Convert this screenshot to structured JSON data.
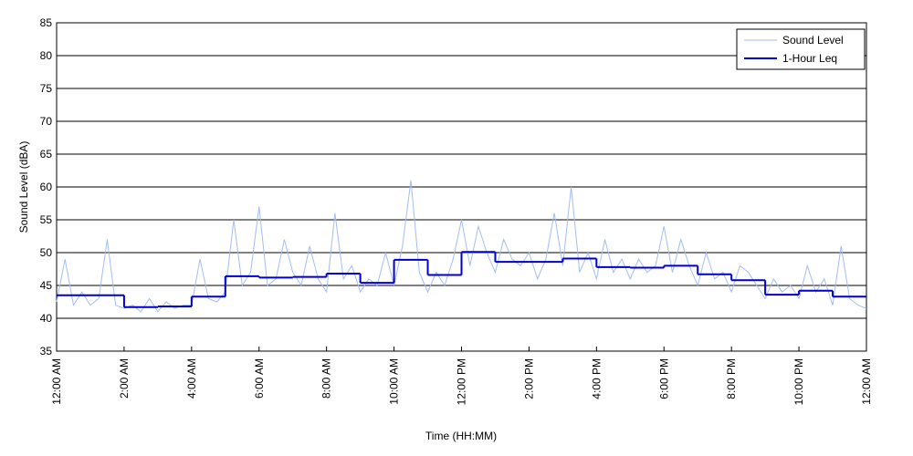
{
  "chart_data": {
    "type": "line",
    "xlabel": "Time (HH:MM)",
    "ylabel": "Sound Level (dBA)",
    "xlim": [
      0,
      24
    ],
    "ylim": [
      35,
      85
    ],
    "xticks": [
      {
        "value": 0,
        "label": "12:00 AM"
      },
      {
        "value": 2,
        "label": "2:00 AM"
      },
      {
        "value": 4,
        "label": "4:00 AM"
      },
      {
        "value": 6,
        "label": "6:00 AM"
      },
      {
        "value": 8,
        "label": "8:00 AM"
      },
      {
        "value": 10,
        "label": "10:00 AM"
      },
      {
        "value": 12,
        "label": "12:00 PM"
      },
      {
        "value": 14,
        "label": "2:00 PM"
      },
      {
        "value": 16,
        "label": "4:00 PM"
      },
      {
        "value": 18,
        "label": "6:00 PM"
      },
      {
        "value": 20,
        "label": "8:00 PM"
      },
      {
        "value": 22,
        "label": "10:00 PM"
      },
      {
        "value": 24,
        "label": "12:00 AM"
      }
    ],
    "yticks": [
      35,
      40,
      45,
      50,
      55,
      60,
      65,
      70,
      75,
      80,
      85
    ],
    "grid": true,
    "legend": "upper right",
    "series": [
      {
        "name": "Sound Level",
        "color": "#a3bdf0",
        "step": false,
        "x": [
          0,
          0.25,
          0.5,
          0.75,
          1,
          1.25,
          1.5,
          1.75,
          2,
          2.25,
          2.5,
          2.75,
          3,
          3.25,
          3.5,
          3.75,
          4,
          4.25,
          4.5,
          4.75,
          5,
          5.25,
          5.5,
          5.75,
          6,
          6.25,
          6.5,
          6.75,
          7,
          7.25,
          7.5,
          7.75,
          8,
          8.25,
          8.5,
          8.75,
          9,
          9.25,
          9.5,
          9.75,
          10,
          10.25,
          10.5,
          10.75,
          11,
          11.25,
          11.5,
          11.75,
          12,
          12.25,
          12.5,
          12.75,
          13,
          13.25,
          13.5,
          13.75,
          14,
          14.25,
          14.5,
          14.75,
          15,
          15.25,
          15.5,
          15.75,
          16,
          16.25,
          16.5,
          16.75,
          17,
          17.25,
          17.5,
          17.75,
          18,
          18.25,
          18.5,
          18.75,
          19,
          19.25,
          19.5,
          19.75,
          20,
          20.25,
          20.5,
          20.75,
          21,
          21.25,
          21.5,
          21.75,
          22,
          22.25,
          22.5,
          22.75,
          23,
          23.25,
          23.5,
          23.75,
          24
        ],
        "values": [
          42.5,
          49,
          42,
          44,
          42,
          43,
          52,
          42,
          41.5,
          42,
          41,
          43,
          41,
          42.5,
          41.5,
          42,
          42,
          49,
          43,
          42.5,
          44,
          55,
          45,
          47,
          57,
          45,
          46,
          52,
          47,
          45,
          51,
          46,
          44,
          56,
          46,
          48,
          44,
          46,
          45,
          50,
          45,
          51,
          61,
          47,
          44,
          47,
          45,
          49,
          55,
          48,
          54,
          50,
          47,
          52,
          49,
          48,
          50,
          46,
          49,
          56,
          48,
          60,
          47,
          50,
          46,
          52,
          47,
          49,
          46,
          49,
          47,
          48,
          54,
          47,
          52,
          48,
          45,
          50,
          46,
          47,
          44,
          48,
          47,
          45,
          43,
          46,
          44,
          45,
          43,
          48,
          44,
          46,
          42,
          51,
          43,
          42,
          41.5
        ]
      },
      {
        "name": "1-Hour Leq",
        "color": "#0000cc",
        "step": true,
        "x": [
          0,
          1,
          2,
          3,
          4,
          5,
          6,
          7,
          8,
          9,
          10,
          11,
          12,
          13,
          14,
          15,
          16,
          17,
          18,
          19,
          20,
          21,
          22,
          23
        ],
        "values": [
          43.5,
          43.5,
          41.7,
          41.8,
          43.3,
          46.4,
          46.2,
          46.3,
          46.8,
          45.4,
          48.9,
          46.6,
          50.1,
          48.6,
          48.6,
          49.1,
          47.8,
          47.7,
          48.0,
          46.7,
          45.8,
          43.6,
          44.2,
          43.3
        ]
      }
    ]
  }
}
